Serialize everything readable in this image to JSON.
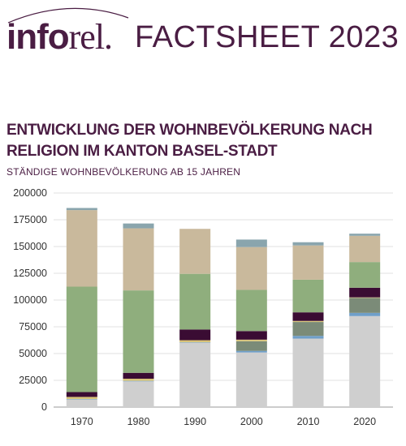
{
  "header": {
    "logo_part1": "info",
    "logo_part2": "rel.",
    "title": "FACTSHEET 2023"
  },
  "chart_data": {
    "type": "bar",
    "stacked": true,
    "title": "ENTWICKLUNG DER WOHNBEVÖLKERUNG NACH RELIGION IM KANTON BASEL-STADT",
    "subtitle": "STÄNDIGE WOHNBEVÖLKERUNG AB 15 JAHREN",
    "categories": [
      "1970",
      "1980",
      "1990",
      "2000",
      "2010",
      "2020"
    ],
    "ylim": [
      0,
      200000
    ],
    "yticks": [
      "0",
      "25000",
      "50000",
      "75000",
      "100000",
      "125000",
      "150000",
      "175000",
      "200000"
    ],
    "grid": true,
    "legend": "none",
    "series": [
      {
        "color": "#cfcfcf",
        "values": [
          7000,
          24000,
          60000,
          51000,
          64000,
          85000
        ]
      },
      {
        "color": "#6f9fc9",
        "values": [
          500,
          500,
          500,
          1500,
          2500,
          3000
        ]
      },
      {
        "color": "#7b8b78",
        "values": [
          0,
          0,
          0,
          9000,
          13000,
          14000
        ]
      },
      {
        "color": "#d8c47a",
        "values": [
          2000,
          2000,
          2000,
          1500,
          1000,
          500
        ]
      },
      {
        "color": "#3a0c33",
        "values": [
          4500,
          5500,
          10000,
          8000,
          8000,
          9000
        ]
      },
      {
        "color": "#8fae7d",
        "values": [
          98500,
          77000,
          52000,
          38500,
          30500,
          24000
        ]
      },
      {
        "color": "#c9b99c",
        "values": [
          71500,
          58000,
          42000,
          40000,
          32000,
          24500
        ]
      },
      {
        "color": "#8aa5ad",
        "values": [
          2000,
          4500,
          0,
          7000,
          3000,
          2000
        ]
      }
    ]
  }
}
